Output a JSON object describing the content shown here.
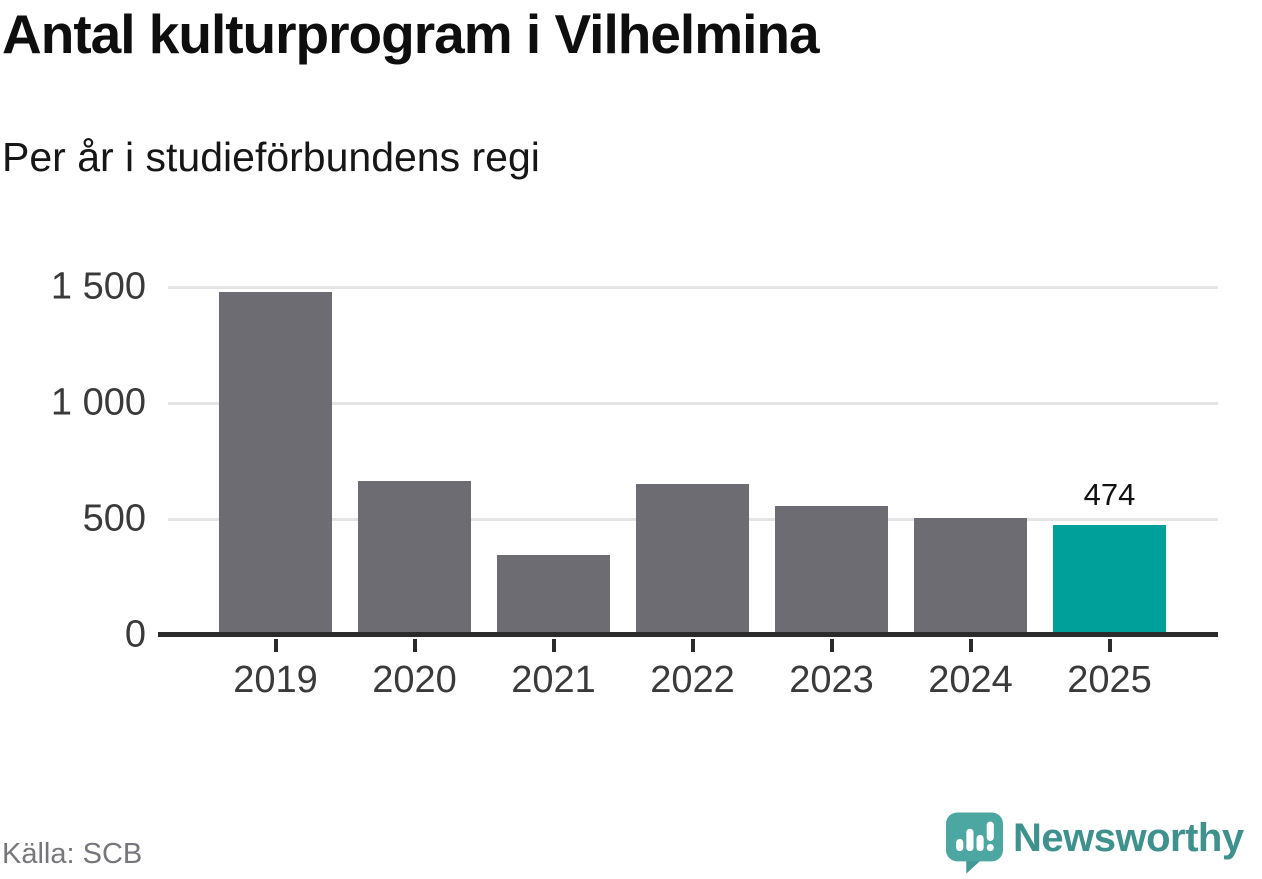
{
  "chart_data": {
    "type": "bar",
    "title": "Antal kulturprogram i Vilhelmina",
    "subtitle": "Per år i studieförbundens regi",
    "categories": [
      "2019",
      "2020",
      "2021",
      "2022",
      "2023",
      "2024",
      "2025"
    ],
    "values": [
      1480,
      665,
      345,
      650,
      555,
      505,
      474
    ],
    "bar_labels": [
      "",
      "",
      "",
      "",
      "",
      "",
      "474"
    ],
    "highlight_index": 6,
    "ylim": [
      0,
      1500
    ],
    "yticks": [
      {
        "value": 0,
        "label": "0"
      },
      {
        "value": 500,
        "label": "500"
      },
      {
        "value": 1000,
        "label": "1 000"
      },
      {
        "value": 1500,
        "label": "1 500"
      }
    ],
    "grid": true,
    "legend": false,
    "xlabel": "",
    "ylabel": "",
    "colors": {
      "bar": "#6d6c72",
      "highlight": "#00a09a",
      "gridline": "#e4e4e4",
      "axis": "#2b2b2b",
      "tick_text": "#3a3a3a",
      "value_label": "#111111"
    }
  },
  "footer": {
    "source": "Källa: SCB",
    "brand": {
      "name": "Newsworthy",
      "icon_color": "#4ca6a2",
      "icon_shadow_color": "#3d8b88",
      "icon_glyph_color": "#ffffff",
      "wordmark_color": "#3f918e"
    }
  }
}
